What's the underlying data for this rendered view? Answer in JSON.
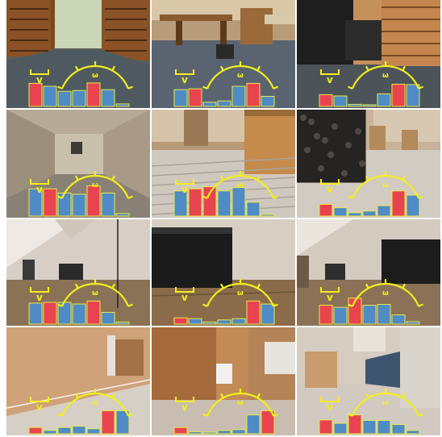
{
  "overlay": {
    "v_label": "v",
    "omega_label": "ω",
    "bar_colors": {
      "red": "#e8444f",
      "blue": "#4f8bc4"
    },
    "bar_outline": "#e9e94a",
    "overlay_color": "#f2ee1c"
  },
  "tiles": [
    {
      "scene": "library-shelves-window",
      "bars": [
        {
          "color": "red",
          "level": 0.55
        },
        {
          "color": "blue",
          "level": 0.48
        },
        {
          "color": "blue",
          "level": 0.36
        },
        {
          "color": "blue",
          "level": 0.38
        },
        {
          "color": "red",
          "level": 0.56
        },
        {
          "color": "blue",
          "level": 0.4
        },
        {
          "color": "blue",
          "level": 0.06
        }
      ]
    },
    {
      "scene": "library-desks",
      "bars": [
        {
          "color": "blue",
          "level": 0.4
        },
        {
          "color": "red",
          "level": 0.42
        },
        {
          "color": "blue",
          "level": 0.1
        },
        {
          "color": "blue",
          "level": 0.13
        },
        {
          "color": "blue",
          "level": 0.48
        },
        {
          "color": "red",
          "level": 0.55
        },
        {
          "color": "blue",
          "level": 0.24
        }
      ]
    },
    {
      "scene": "library-ottoman-shelves",
      "bars": [
        {
          "color": "red",
          "level": 0.28
        },
        {
          "color": "blue",
          "level": 0.25
        },
        {
          "color": "blue",
          "level": 0.05
        },
        {
          "color": "blue",
          "level": 0.04
        },
        {
          "color": "blue",
          "level": 0.3
        },
        {
          "color": "red",
          "level": 0.53
        },
        {
          "color": "blue",
          "level": 0.52
        }
      ]
    },
    {
      "scene": "corridor",
      "bars": [
        {
          "color": "blue",
          "level": 0.65
        },
        {
          "color": "red",
          "level": 0.65
        },
        {
          "color": "blue",
          "level": 0.55
        },
        {
          "color": "blue",
          "level": 0.52
        },
        {
          "color": "red",
          "level": 0.72
        },
        {
          "color": "blue",
          "level": 0.55
        },
        {
          "color": "blue",
          "level": 0.06
        }
      ]
    },
    {
      "scene": "hall-cabinet",
      "bars": [
        {
          "color": "blue",
          "level": 0.6
        },
        {
          "color": "red",
          "level": 0.65
        },
        {
          "color": "red",
          "level": 0.7
        },
        {
          "color": "blue",
          "level": 0.6
        },
        {
          "color": "blue",
          "level": 0.68
        },
        {
          "color": "blue",
          "level": 0.33
        },
        {
          "color": "blue",
          "level": 0.03
        }
      ]
    },
    {
      "scene": "hall-marble-pillar",
      "bars": [
        {
          "color": "red",
          "level": 0.28
        },
        {
          "color": "blue",
          "level": 0.2
        },
        {
          "color": "blue",
          "level": 0.08
        },
        {
          "color": "blue",
          "level": 0.12
        },
        {
          "color": "blue",
          "level": 0.25
        },
        {
          "color": "red",
          "level": 0.6
        },
        {
          "color": "blue",
          "level": 0.5
        }
      ]
    },
    {
      "scene": "attic-room",
      "bars": [
        {
          "color": "blue",
          "level": 0.5
        },
        {
          "color": "red",
          "level": 0.52
        },
        {
          "color": "blue",
          "level": 0.52
        },
        {
          "color": "blue",
          "level": 0.48
        },
        {
          "color": "red",
          "level": 0.55
        },
        {
          "color": "blue",
          "level": 0.28
        },
        {
          "color": "blue",
          "level": 0.05
        }
      ]
    },
    {
      "scene": "attic-ottoman-close",
      "bars": [
        {
          "color": "red",
          "level": 0.15
        },
        {
          "color": "blue",
          "level": 0.13
        },
        {
          "color": "blue",
          "level": 0.05
        },
        {
          "color": "blue",
          "level": 0.1
        },
        {
          "color": "blue",
          "level": 0.13
        },
        {
          "color": "red",
          "level": 0.55
        },
        {
          "color": "blue",
          "level": 0.48
        }
      ]
    },
    {
      "scene": "attic-sofa",
      "bars": [
        {
          "color": "red",
          "level": 0.45
        },
        {
          "color": "blue",
          "level": 0.4
        },
        {
          "color": "red",
          "level": 0.62
        },
        {
          "color": "blue",
          "level": 0.45
        },
        {
          "color": "blue",
          "level": 0.47
        },
        {
          "color": "blue",
          "level": 0.22
        },
        {
          "color": "blue",
          "level": 0.06
        }
      ]
    },
    {
      "scene": "room-radiator-wall",
      "bars": [
        {
          "color": "red",
          "level": 0.15
        },
        {
          "color": "blue",
          "level": 0.08
        },
        {
          "color": "blue",
          "level": 0.15
        },
        {
          "color": "blue",
          "level": 0.18
        },
        {
          "color": "blue",
          "level": 0.12
        },
        {
          "color": "red",
          "level": 0.55
        },
        {
          "color": "blue",
          "level": 0.55
        }
      ]
    },
    {
      "scene": "room-cabinet-bags",
      "bars": [
        {
          "color": "red",
          "level": 0.15
        },
        {
          "color": "blue",
          "level": 0.05
        },
        {
          "color": "blue",
          "level": 0.03
        },
        {
          "color": "blue",
          "level": 0.08
        },
        {
          "color": "blue",
          "level": 0.1
        },
        {
          "color": "blue",
          "level": 0.45
        },
        {
          "color": "red",
          "level": 0.55
        }
      ]
    },
    {
      "scene": "room-box-person",
      "bars": [
        {
          "color": "red",
          "level": 0.33
        },
        {
          "color": "blue",
          "level": 0.25
        },
        {
          "color": "red",
          "level": 0.45
        },
        {
          "color": "blue",
          "level": 0.32
        },
        {
          "color": "blue",
          "level": 0.32
        },
        {
          "color": "blue",
          "level": 0.22
        },
        {
          "color": "blue",
          "level": 0.08
        }
      ]
    }
  ]
}
